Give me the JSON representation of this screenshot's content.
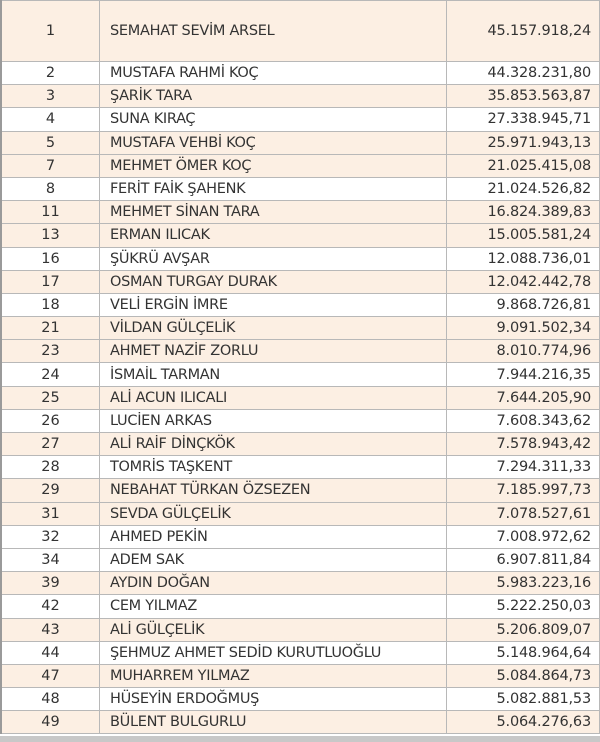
{
  "rows": [
    {
      "rank": "1",
      "name": "SEMAHAT SEVİM ARSEL",
      "amount": "45.157.918,24",
      "shaded": true
    },
    {
      "rank": "2",
      "name": "MUSTAFA RAHMİ KOÇ",
      "amount": "44.328.231,80",
      "shaded": false
    },
    {
      "rank": "3",
      "name": "ŞARİK TARA",
      "amount": "35.853.563,87",
      "shaded": true
    },
    {
      "rank": "4",
      "name": "SUNA KIRAÇ",
      "amount": "27.338.945,71",
      "shaded": false
    },
    {
      "rank": "5",
      "name": "MUSTAFA VEHBİ KOÇ",
      "amount": "25.971.943,13",
      "shaded": true
    },
    {
      "rank": "7",
      "name": "MEHMET ÖMER KOÇ",
      "amount": "21.025.415,08",
      "shaded": true
    },
    {
      "rank": "8",
      "name": "FERİT FAİK ŞAHENK",
      "amount": "21.024.526,82",
      "shaded": false
    },
    {
      "rank": "11",
      "name": "MEHMET SİNAN TARA",
      "amount": "16.824.389,83",
      "shaded": true
    },
    {
      "rank": "13",
      "name": "ERMAN ILICAK",
      "amount": "15.005.581,24",
      "shaded": true
    },
    {
      "rank": "16",
      "name": "ŞÜKRÜ AVŞAR",
      "amount": "12.088.736,01",
      "shaded": false
    },
    {
      "rank": "17",
      "name": "OSMAN TURGAY DURAK",
      "amount": "12.042.442,78",
      "shaded": true
    },
    {
      "rank": "18",
      "name": "VELİ ERGİN İMRE",
      "amount": "9.868.726,81",
      "shaded": false
    },
    {
      "rank": "21",
      "name": "VİLDAN GÜLÇELİK",
      "amount": "9.091.502,34",
      "shaded": true
    },
    {
      "rank": "23",
      "name": "AHMET NAZİF ZORLU",
      "amount": "8.010.774,96",
      "shaded": true
    },
    {
      "rank": "24",
      "name": "İSMAİL TARMAN",
      "amount": "7.944.216,35",
      "shaded": false
    },
    {
      "rank": "25",
      "name": "ALİ ACUN ILICALI",
      "amount": "7.644.205,90",
      "shaded": true
    },
    {
      "rank": "26",
      "name": "LUCİEN ARKAS",
      "amount": "7.608.343,62",
      "shaded": false
    },
    {
      "rank": "27",
      "name": "ALİ RAİF DİNÇKÖK",
      "amount": "7.578.943,42",
      "shaded": true
    },
    {
      "rank": "28",
      "name": "TOMRİS TAŞKENT",
      "amount": "7.294.311,33",
      "shaded": false
    },
    {
      "rank": "29",
      "name": "NEBAHAT TÜRKAN ÖZSEZEN",
      "amount": "7.185.997,73",
      "shaded": true
    },
    {
      "rank": "31",
      "name": "SEVDA GÜLÇELİK",
      "amount": "7.078.527,61",
      "shaded": true
    },
    {
      "rank": "32",
      "name": "AHMED PEKİN",
      "amount": "7.008.972,62",
      "shaded": false
    },
    {
      "rank": "34",
      "name": "ADEM SAK",
      "amount": "6.907.811,84",
      "shaded": false
    },
    {
      "rank": "39",
      "name": "AYDIN DOĞAN",
      "amount": "5.983.223,16",
      "shaded": true
    },
    {
      "rank": "42",
      "name": "CEM YILMAZ",
      "amount": "5.222.250,03",
      "shaded": false
    },
    {
      "rank": "43",
      "name": "ALİ GÜLÇELİK",
      "amount": "5.206.809,07",
      "shaded": true
    },
    {
      "rank": "44",
      "name": "ŞEHMUZ AHMET SEDİD KURUTLUOĞLU",
      "amount": "5.148.964,64",
      "shaded": false
    },
    {
      "rank": "47",
      "name": "MUHARREM YILMAZ",
      "amount": "5.084.864,73",
      "shaded": true
    },
    {
      "rank": "48",
      "name": "HÜSEYİN ERDOĞMUŞ",
      "amount": "5.082.881,53",
      "shaded": false
    },
    {
      "rank": "49",
      "name": "BÜLENT BULGURLU",
      "amount": "5.064.276,63",
      "shaded": true
    }
  ],
  "colors": {
    "shaded_row": "#fcefe3",
    "border": "#b8b8b8"
  }
}
